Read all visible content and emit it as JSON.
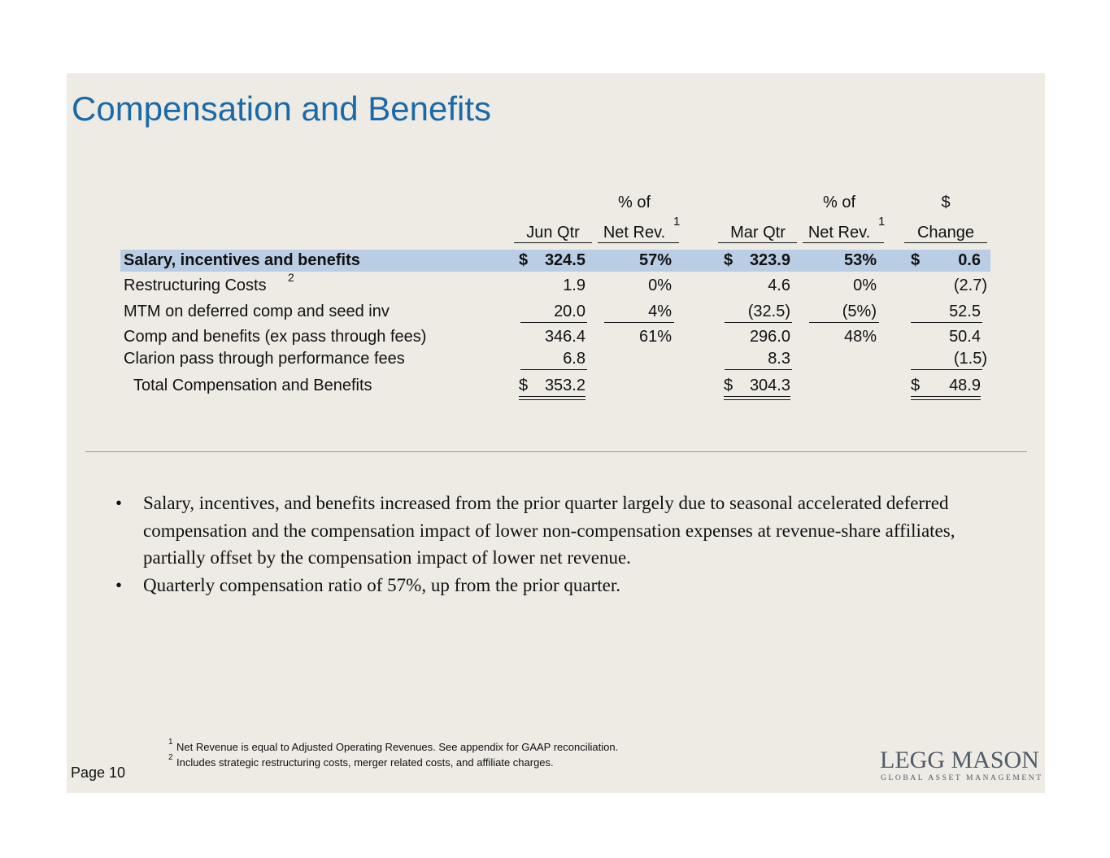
{
  "title": "Compensation and Benefits",
  "table": {
    "header_top": [
      "% of",
      "% of",
      "$"
    ],
    "headers": [
      "Jun Qtr",
      "Net Rev.",
      "Mar Qtr",
      "Net Rev.",
      "Change"
    ],
    "header_notes": [
      "1",
      "1"
    ],
    "rows": [
      {
        "label": "Salary, incentives and benefits",
        "cells": [
          {
            "prefix": "$",
            "text": "324.5"
          },
          "57%",
          {
            "prefix": "$",
            "text": "323.9"
          },
          "53%",
          {
            "prefix": "$",
            "text": "0.6"
          }
        ]
      },
      {
        "label": "Restructuring Costs",
        "note": "2",
        "cells": [
          "1.9",
          "0%",
          "4.6",
          "0%",
          "(2.7)"
        ]
      },
      {
        "label": "MTM on deferred comp and seed inv",
        "cells": [
          "20.0",
          "4%",
          "(32.5)",
          "(5%)",
          "52.5"
        ]
      },
      {
        "label": "Comp and benefits (ex pass through fees)",
        "cells": [
          "346.4",
          "61%",
          "296.0",
          "48%",
          "50.4"
        ]
      },
      {
        "label": "Clarion pass through performance fees",
        "cells": [
          "6.8",
          null,
          "8.3",
          null,
          "(1.5)"
        ]
      },
      {
        "label": "Total Compensation and Benefits",
        "cells": [
          {
            "prefix": "$",
            "text": "353.2"
          },
          null,
          {
            "prefix": "$",
            "text": "304.3"
          },
          null,
          {
            "prefix": "$",
            "text": "48.9"
          }
        ]
      }
    ]
  },
  "bullets": [
    "Salary, incentives, and benefits increased from the prior quarter largely due to seasonal accelerated deferred compensation and the compensation impact of lower non-compensation expenses at revenue-share affiliates, partially offset by the compensation impact of lower net revenue.",
    "Quarterly compensation ratio of 57%, up from the prior quarter."
  ],
  "footnotes": [
    {
      "mark": "1",
      "text": "Net Revenue is equal to Adjusted Operating Revenues. See appendix for GAAP reconciliation."
    },
    {
      "mark": "2",
      "text": "Includes strategic restructuring costs, merger related costs, and affiliate charges."
    }
  ],
  "page": "Page 10",
  "logo": {
    "name": "LEGG MASON",
    "tagline": "GLOBAL ASSET MANAGEMENT"
  }
}
